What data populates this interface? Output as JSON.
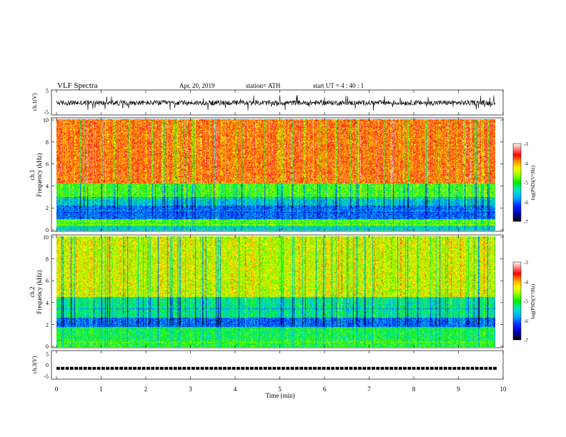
{
  "header": {
    "title": "VLF  Spectra",
    "date": "Apr. 20, 2019",
    "station": "station= ATH",
    "start": "start  UT  =    4   : 40 : 1"
  },
  "colors": {
    "spectrogram": [
      "#ffffff",
      "#ff0000",
      "#ffff00",
      "#00ff00",
      "#00c8ff",
      "#0000ff",
      "#000000"
    ],
    "background": "#ffffff",
    "trace": "#000000"
  },
  "chart_data": [
    {
      "type": "line",
      "panel": "ch1-waveform",
      "ylabel": "ch.1(V)",
      "ylim": [
        -5,
        5
      ],
      "yticks": [
        "5",
        "-5"
      ],
      "xlim": [
        0,
        10
      ],
      "description_level": "noisy waveform centered near 0 V, amplitude roughly ±2 V with spikes to ±4 V",
      "series": [
        {
          "values_range": [
            -4,
            4
          ],
          "mean": 0
        }
      ]
    },
    {
      "type": "heatmap",
      "panel": "ch1-spectrogram",
      "ylabel": "ch.1\nFrequency  (kHz)",
      "ylabel_line1": "ch.1",
      "ylabel_line2": "Frequency  (kHz)",
      "ylim": [
        0,
        10
      ],
      "yticks": [
        "0",
        "2",
        "4",
        "6",
        "8",
        "10"
      ],
      "xlim": [
        0,
        10
      ],
      "colorbar": {
        "label": "log(PSD)(V²/Hz)",
        "ticks": [
          "-3",
          "-4",
          "-5",
          "-6",
          "-7"
        ],
        "range": [
          -7,
          -3
        ]
      },
      "bands": [
        {
          "f_range": [
            0.0,
            0.4
          ],
          "level": -5.5
        },
        {
          "f_range": [
            0.4,
            1.0
          ],
          "level": -4.8
        },
        {
          "f_range": [
            1.0,
            2.2
          ],
          "level": -6.0
        },
        {
          "f_range": [
            2.2,
            3.0
          ],
          "level": -5.6
        },
        {
          "f_range": [
            3.0,
            4.2
          ],
          "level": -4.9
        },
        {
          "f_range": [
            4.2,
            10.0
          ],
          "level": -3.8
        }
      ]
    },
    {
      "type": "heatmap",
      "panel": "ch2-spectrogram",
      "ylabel": "ch.2\nFrequency  (kHz)",
      "ylabel_line1": "ch.2",
      "ylabel_line2": "Frequency  (kHz)",
      "ylim": [
        0,
        10
      ],
      "yticks": [
        "0",
        "2",
        "4",
        "6",
        "8",
        "10"
      ],
      "xlim": [
        0,
        10
      ],
      "colorbar": {
        "label": "log(PSD)(V²/Hz)",
        "ticks": [
          "-3",
          "-4",
          "-5",
          "-6",
          "-7"
        ],
        "range": [
          -7,
          -3
        ]
      },
      "bands": [
        {
          "f_range": [
            0.0,
            0.6
          ],
          "level": -5.0
        },
        {
          "f_range": [
            0.6,
            1.8
          ],
          "level": -5.1
        },
        {
          "f_range": [
            1.8,
            2.6
          ],
          "level": -6.0
        },
        {
          "f_range": [
            2.6,
            4.5
          ],
          "level": -5.3
        },
        {
          "f_range": [
            4.5,
            10.0
          ],
          "level": -4.4
        }
      ]
    },
    {
      "type": "line",
      "panel": "ch3-waveform",
      "ylabel": "ch.3(V)",
      "ylim": [
        -5,
        5
      ],
      "yticks": [
        "5",
        "0",
        "-5"
      ],
      "xlim": [
        0,
        10
      ],
      "xlabel": "Time  (min)",
      "xticks": [
        "0",
        "1",
        "2",
        "3",
        "4",
        "5",
        "6",
        "7",
        "8",
        "9",
        "10"
      ],
      "series": [
        {
          "constant_level": -1.5
        }
      ]
    }
  ]
}
